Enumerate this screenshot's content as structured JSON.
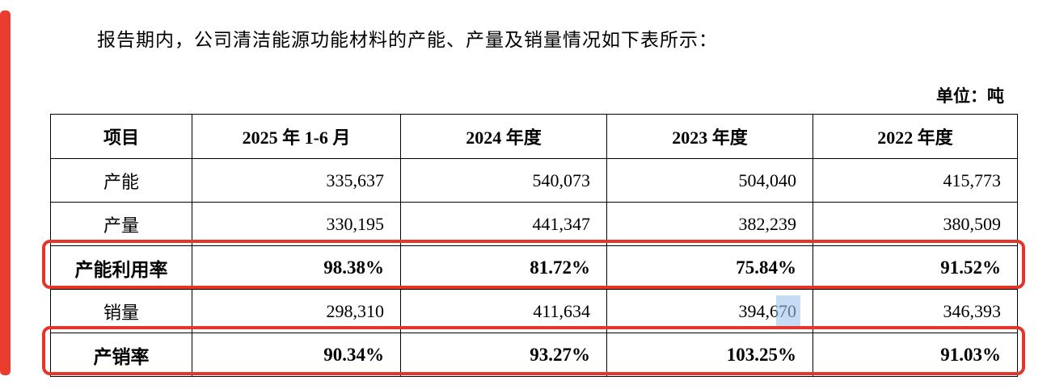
{
  "page": {
    "intro": "报告期内，公司清洁能源功能材料的产能、产量及销量情况如下表所示：",
    "unit_label": "单位：吨"
  },
  "table": {
    "headers": [
      "项目",
      "2025 年 1-6 月",
      "2024 年度",
      "2023 年度",
      "2022 年度"
    ],
    "rows": [
      {
        "label": "产能",
        "values": [
          "335,637",
          "540,073",
          "504,040",
          "415,773"
        ],
        "emphasis": false
      },
      {
        "label": "产量",
        "values": [
          "330,195",
          "441,347",
          "382,239",
          "380,509"
        ],
        "emphasis": false
      },
      {
        "label": "产能利用率",
        "values": [
          "98.38%",
          "81.72%",
          "75.84%",
          "91.52%"
        ],
        "emphasis": true
      },
      {
        "label": "销量",
        "values": [
          "298,310",
          "411,634",
          "394,670",
          "346,393"
        ],
        "emphasis": false
      },
      {
        "label": "产销率",
        "values": [
          "90.34%",
          "93.27%",
          "103.25%",
          "91.03%"
        ],
        "emphasis": true
      }
    ]
  },
  "annotations": {
    "highlight_box_color": "#e4352b",
    "selection_color": "#9ec4ec",
    "highlighted_rows": [
      "产能利用率",
      "产销率"
    ]
  }
}
